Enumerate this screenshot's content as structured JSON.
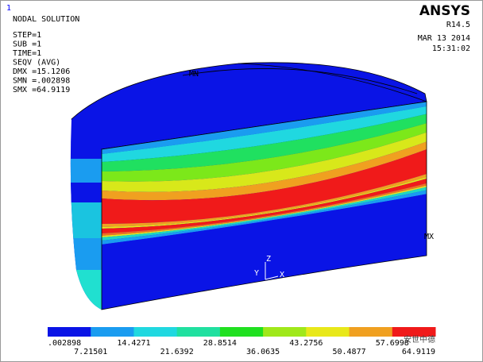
{
  "header": {
    "window_number": "1",
    "title": "NODAL SOLUTION",
    "lines": [
      "STEP=1",
      "SUB =1",
      "TIME=1",
      "SEQV      (AVG)",
      "DMX =15.1206",
      "SMN =.002898",
      "SMX =64.9119"
    ]
  },
  "brand": {
    "name": "ANSYS",
    "version": "R14.5",
    "date": "MAR 13 2014",
    "time": "15:31:02"
  },
  "model": {
    "min_marker": "MN",
    "max_marker": "MX",
    "axes": {
      "z": "Z",
      "y": "Y",
      "x": "X"
    }
  },
  "legend": {
    "labels": [
      ".002898",
      "7.21501",
      "14.4271",
      "21.6392",
      "28.8514",
      "36.0635",
      "43.2756",
      "50.4877",
      "57.6998",
      "64.9119"
    ]
  },
  "watermark": "安世中德"
}
